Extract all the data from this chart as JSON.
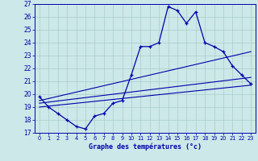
{
  "title": "Graphe des températures (°c)",
  "bg_color": "#cce8e8",
  "line_color": "#0000aa",
  "grid_color": "#aacccc",
  "ylim": [
    17,
    27
  ],
  "xlim": [
    -0.5,
    23.5
  ],
  "yticks": [
    17,
    18,
    19,
    20,
    21,
    22,
    23,
    24,
    25,
    26,
    27
  ],
  "xticks": [
    0,
    1,
    2,
    3,
    4,
    5,
    6,
    7,
    8,
    9,
    10,
    11,
    12,
    13,
    14,
    15,
    16,
    17,
    18,
    19,
    20,
    21,
    22,
    23
  ],
  "curve1_x": [
    0,
    1,
    2,
    3,
    4,
    5,
    6,
    7,
    8,
    9,
    10,
    11,
    12,
    13,
    14,
    15,
    16,
    17,
    18,
    19,
    20,
    21,
    22,
    23
  ],
  "curve1_y": [
    19.8,
    19.0,
    18.5,
    18.0,
    17.5,
    17.3,
    18.3,
    18.5,
    19.3,
    19.5,
    21.5,
    23.7,
    23.7,
    24.0,
    26.8,
    26.5,
    25.5,
    26.4,
    24.0,
    23.7,
    23.3,
    22.2,
    21.5,
    20.8
  ],
  "line1_x": [
    0,
    23
  ],
  "line1_y": [
    19.0,
    20.7
  ],
  "line2_x": [
    0,
    23
  ],
  "line2_y": [
    19.3,
    21.3
  ],
  "line3_x": [
    0,
    23
  ],
  "line3_y": [
    19.5,
    23.3
  ]
}
